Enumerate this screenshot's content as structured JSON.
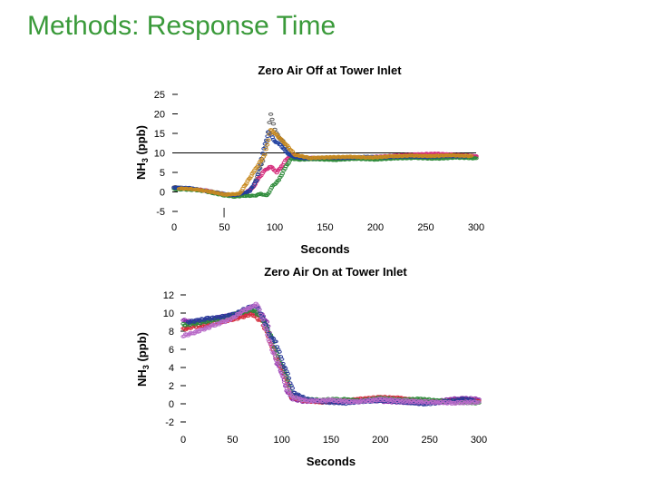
{
  "slide": {
    "title": "Methods: Response Time"
  },
  "chart_data": [
    {
      "type": "scatter",
      "title": "Zero Air Off at Tower Inlet",
      "xlabel": "Seconds",
      "ylabel_main": "NH",
      "ylabel_sub": "3",
      "ylabel_unit": " (ppb)",
      "xlim": [
        0,
        300
      ],
      "ylim": [
        -5,
        25
      ],
      "xticks": [
        "0",
        "50",
        "100",
        "150",
        "200",
        "250",
        "300"
      ],
      "yticks": [
        "-5",
        "0",
        "5",
        "10",
        "15",
        "20",
        "25"
      ],
      "reference_line_y": 10,
      "annotations": [
        "|"
      ],
      "series": [
        {
          "color": "#5a5a5a",
          "points": [
            [
              0,
              1.2
            ],
            [
              10,
              1.0
            ],
            [
              20,
              0.8
            ],
            [
              30,
              0.4
            ],
            [
              40,
              0.0
            ],
            [
              50,
              -0.5
            ],
            [
              60,
              -0.8
            ],
            [
              70,
              -0.6
            ],
            [
              76,
              0.5
            ],
            [
              80,
              2
            ],
            [
              84,
              5
            ],
            [
              88,
              8
            ],
            [
              92,
              13
            ],
            [
              96,
              20
            ],
            [
              100,
              16
            ],
            [
              104,
              14
            ],
            [
              108,
              13
            ],
            [
              112,
              11
            ],
            [
              116,
              9.2
            ],
            [
              125,
              8.5
            ],
            [
              140,
              8.6
            ],
            [
              160,
              8.6
            ],
            [
              180,
              8.7
            ],
            [
              200,
              8.8
            ],
            [
              220,
              8.9
            ],
            [
              240,
              8.8
            ],
            [
              260,
              9.0
            ],
            [
              280,
              9.1
            ],
            [
              300,
              9.0
            ]
          ]
        },
        {
          "color": "#d42a7a",
          "points": [
            [
              0,
              1.0
            ],
            [
              10,
              0.8
            ],
            [
              20,
              0.6
            ],
            [
              30,
              0.5
            ],
            [
              40,
              -0.2
            ],
            [
              50,
              -0.6
            ],
            [
              60,
              -1.0
            ],
            [
              70,
              -0.4
            ],
            [
              78,
              1
            ],
            [
              84,
              3.5
            ],
            [
              90,
              5.5
            ],
            [
              96,
              6.5
            ],
            [
              102,
              5
            ],
            [
              108,
              7
            ],
            [
              112,
              8.5
            ],
            [
              118,
              9.5
            ],
            [
              125,
              8.8
            ],
            [
              140,
              8.7
            ],
            [
              160,
              8.5
            ],
            [
              180,
              8.6
            ],
            [
              200,
              9.0
            ],
            [
              220,
              9.3
            ],
            [
              240,
              9.6
            ],
            [
              260,
              9.8
            ],
            [
              280,
              9.5
            ],
            [
              300,
              9.2
            ]
          ]
        },
        {
          "color": "#2e8b3a",
          "points": [
            [
              0,
              0.7
            ],
            [
              10,
              0.6
            ],
            [
              20,
              0.5
            ],
            [
              30,
              0.2
            ],
            [
              40,
              -0.4
            ],
            [
              50,
              -0.9
            ],
            [
              60,
              -1.2
            ],
            [
              70,
              -1.0
            ],
            [
              80,
              -1.0
            ],
            [
              86,
              -0.5
            ],
            [
              92,
              -1
            ],
            [
              98,
              1.5
            ],
            [
              104,
              3
            ],
            [
              110,
              6
            ],
            [
              116,
              8.5
            ],
            [
              125,
              8.3
            ],
            [
              140,
              8.4
            ],
            [
              160,
              8.2
            ],
            [
              180,
              8.5
            ],
            [
              200,
              8.3
            ],
            [
              220,
              8.6
            ],
            [
              240,
              8.7
            ],
            [
              260,
              8.5
            ],
            [
              280,
              8.8
            ],
            [
              300,
              8.6
            ]
          ]
        },
        {
          "color": "#1f3f9f",
          "points": [
            [
              0,
              1.1
            ],
            [
              15,
              1.0
            ],
            [
              30,
              0.3
            ],
            [
              45,
              -0.4
            ],
            [
              60,
              -0.9
            ],
            [
              75,
              0.2
            ],
            [
              82,
              3
            ],
            [
              88,
              10
            ],
            [
              94,
              15.5
            ],
            [
              100,
              13
            ],
            [
              106,
              12
            ],
            [
              112,
              10
            ],
            [
              118,
              9
            ],
            [
              130,
              8.6
            ],
            [
              150,
              8.8
            ],
            [
              170,
              8.7
            ],
            [
              190,
              9.0
            ],
            [
              210,
              8.9
            ],
            [
              230,
              9.1
            ],
            [
              250,
              9.0
            ],
            [
              270,
              9.2
            ],
            [
              290,
              9.1
            ]
          ]
        },
        {
          "color": "#c88a20",
          "points": [
            [
              5,
              0.9
            ],
            [
              20,
              0.7
            ],
            [
              35,
              0.1
            ],
            [
              50,
              -0.7
            ],
            [
              65,
              -0.5
            ],
            [
              80,
              5.5
            ],
            [
              90,
              9.5
            ],
            [
              96,
              16
            ],
            [
              104,
              14
            ],
            [
              110,
              12.5
            ],
            [
              120,
              9.5
            ],
            [
              135,
              8.7
            ],
            [
              155,
              8.9
            ],
            [
              175,
              9.0
            ],
            [
              195,
              8.8
            ],
            [
              215,
              9.1
            ],
            [
              235,
              9.3
            ],
            [
              255,
              9.2
            ],
            [
              275,
              9.4
            ],
            [
              295,
              9.2
            ]
          ]
        }
      ]
    },
    {
      "type": "scatter",
      "title": "Zero Air On at Tower Inlet",
      "xlabel": "Seconds",
      "ylabel_main": "NH",
      "ylabel_sub": "3",
      "ylabel_unit": " (ppb)",
      "xlim": [
        0,
        300
      ],
      "ylim": [
        -2,
        12
      ],
      "xticks": [
        "0",
        "50",
        "100",
        "150",
        "200",
        "250",
        "300"
      ],
      "yticks": [
        "-2",
        "0",
        "2",
        "4",
        "6",
        "8",
        "10",
        "12"
      ],
      "annotations": [],
      "series": [
        {
          "color": "#8a2aa8",
          "points": [
            [
              0,
              9.2
            ],
            [
              10,
              9.0
            ],
            [
              20,
              9.1
            ],
            [
              30,
              9.3
            ],
            [
              40,
              9.6
            ],
            [
              50,
              9.8
            ],
            [
              60,
              10.0
            ],
            [
              70,
              10.2
            ],
            [
              80,
              9.8
            ],
            [
              85,
              9.0
            ],
            [
              90,
              6.8
            ],
            [
              95,
              4.5
            ],
            [
              100,
              3.5
            ],
            [
              105,
              1.5
            ],
            [
              110,
              0.6
            ],
            [
              120,
              0.3
            ],
            [
              140,
              0.3
            ],
            [
              160,
              0.2
            ],
            [
              180,
              0.4
            ],
            [
              200,
              0.3
            ],
            [
              220,
              0.2
            ],
            [
              240,
              0.1
            ],
            [
              260,
              0.3
            ],
            [
              280,
              0.6
            ],
            [
              300,
              0.5
            ]
          ]
        },
        {
          "color": "#d42a3a",
          "points": [
            [
              0,
              8.2
            ],
            [
              10,
              8.5
            ],
            [
              20,
              8.6
            ],
            [
              30,
              8.8
            ],
            [
              40,
              9.1
            ],
            [
              50,
              9.3
            ],
            [
              60,
              9.6
            ],
            [
              70,
              9.9
            ],
            [
              80,
              9.0
            ],
            [
              85,
              7.8
            ],
            [
              90,
              6.2
            ],
            [
              95,
              5.0
            ],
            [
              100,
              4.0
            ],
            [
              105,
              2.6
            ],
            [
              110,
              0.8
            ],
            [
              120,
              0.4
            ],
            [
              140,
              0.2
            ],
            [
              160,
              0.3
            ],
            [
              180,
              0.5
            ],
            [
              200,
              0.7
            ],
            [
              220,
              0.6
            ],
            [
              240,
              0.3
            ],
            [
              260,
              0.2
            ],
            [
              280,
              0.4
            ],
            [
              300,
              0.3
            ]
          ]
        },
        {
          "color": "#2e8b3a",
          "points": [
            [
              0,
              8.7
            ],
            [
              10,
              8.8
            ],
            [
              20,
              9.0
            ],
            [
              30,
              9.2
            ],
            [
              40,
              9.4
            ],
            [
              50,
              9.8
            ],
            [
              60,
              10.1
            ],
            [
              70,
              10.4
            ],
            [
              80,
              9.5
            ],
            [
              85,
              8.3
            ],
            [
              90,
              7.2
            ],
            [
              95,
              5.5
            ],
            [
              100,
              4.2
            ],
            [
              105,
              3.0
            ],
            [
              110,
              1.0
            ],
            [
              120,
              0.5
            ],
            [
              140,
              0.4
            ],
            [
              160,
              0.5
            ],
            [
              180,
              0.3
            ],
            [
              200,
              0.6
            ],
            [
              220,
              0.4
            ],
            [
              240,
              0.5
            ],
            [
              260,
              0.3
            ],
            [
              280,
              0.2
            ],
            [
              300,
              0.1
            ]
          ]
        },
        {
          "color": "#2a3a9a",
          "points": [
            [
              5,
              9.0
            ],
            [
              15,
              9.2
            ],
            [
              25,
              9.4
            ],
            [
              35,
              9.5
            ],
            [
              45,
              9.7
            ],
            [
              55,
              10.0
            ],
            [
              65,
              10.6
            ],
            [
              75,
              10.8
            ],
            [
              82,
              9.2
            ],
            [
              88,
              7.5
            ],
            [
              94,
              6.8
            ],
            [
              100,
              4.8
            ],
            [
              106,
              3.2
            ],
            [
              112,
              1.2
            ],
            [
              125,
              0.5
            ],
            [
              145,
              0.2
            ],
            [
              165,
              0.1
            ],
            [
              185,
              0.3
            ],
            [
              205,
              0.4
            ],
            [
              225,
              0.2
            ],
            [
              245,
              0.0
            ],
            [
              265,
              0.2
            ],
            [
              285,
              0.5
            ],
            [
              295,
              0.4
            ]
          ]
        },
        {
          "color": "#b86ac8",
          "points": [
            [
              0,
              7.5
            ],
            [
              10,
              7.8
            ],
            [
              20,
              8.2
            ],
            [
              30,
              8.6
            ],
            [
              40,
              9.0
            ],
            [
              50,
              9.4
            ],
            [
              60,
              10.2
            ],
            [
              68,
              10.6
            ],
            [
              75,
              11.0
            ],
            [
              82,
              8.8
            ],
            [
              90,
              6.0
            ],
            [
              98,
              4.0
            ],
            [
              104,
              2.0
            ],
            [
              110,
              0.8
            ],
            [
              125,
              0.3
            ],
            [
              150,
              0.4
            ],
            [
              175,
              0.2
            ],
            [
              200,
              0.5
            ],
            [
              225,
              0.3
            ],
            [
              250,
              0.2
            ],
            [
              275,
              0.1
            ],
            [
              300,
              0.2
            ]
          ]
        }
      ]
    }
  ]
}
